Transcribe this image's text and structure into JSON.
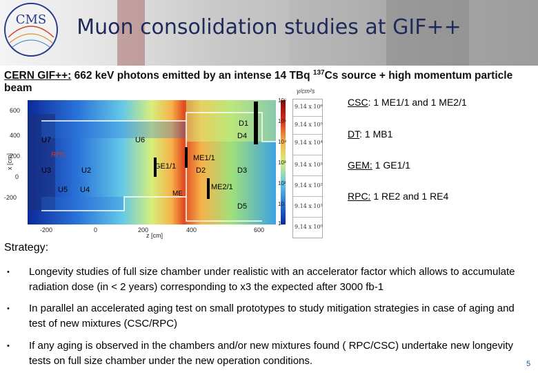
{
  "title": "Muon consolidation studies at GIF++",
  "intro": {
    "label": "CERN GIF++:",
    "text_before_sup": " 662 keV photons emitted by an intense 14 TBq ",
    "sup": "137",
    "text_after_sup": "Cs source + high momentum particle beam"
  },
  "figure": {
    "zone_labels": [
      "U7",
      "U6",
      "U3",
      "U2",
      "U5",
      "U4",
      "D4",
      "D2",
      "D3",
      "D5",
      "D1"
    ],
    "chamber_labels": [
      "RPC",
      "GE1/1",
      "ME1/1",
      "ME2/1",
      "ME"
    ],
    "y_ticks": [
      "600",
      "400",
      "200",
      "0",
      "-200"
    ],
    "x_ticks": [
      "-200",
      "0",
      "200",
      "400",
      "600"
    ],
    "x_axis_label": "z [cm]",
    "y_axis_label": "x [cm]",
    "colorbar_ticks": [
      "10⁶",
      "10⁵",
      "10⁴",
      "10³",
      "10²",
      "10",
      "1"
    ],
    "rate_unit": "γ/cm²s",
    "rates": [
      "9.14 x 10⁶",
      "9.14 x 10⁵",
      "9.14 x 10⁴",
      "9.14 x 10³",
      "9.14 x 10²",
      "9.14 x 10¹",
      "9.14 x 10⁰"
    ]
  },
  "detectors": [
    {
      "name": "CSC",
      "desc": ": 1 ME1/1 and 1 ME2/1"
    },
    {
      "name": "DT",
      "desc": ":   1 MB1"
    },
    {
      "name": "GEM:",
      "desc": " 1 GE1/1"
    },
    {
      "name": "RPC:",
      "desc": " 1 RE2 and 1 RE4"
    }
  ],
  "strategy_heading": "Strategy:",
  "bullets": [
    "Longevity studies of full size chamber under realistic with an accelerator factor which allows to accumulate radiation dose (in < 2 years) corresponding to x3 the expected after 3000 fb-1",
    " In parallel an accelerated aging test on small prototypes to study mitigation strategies in case of aging and test of new mixtures (CSC/RPC)",
    "If any aging is observed in the chambers and/or new mixtures found ( RPC/CSC) undertake new longevity tests on full size chamber under the new operation conditions."
  ],
  "bullet_marker": "•",
  "page_number": "5",
  "colors": {
    "title": "#1f2a5a",
    "page_number": "#1f4e9a"
  }
}
